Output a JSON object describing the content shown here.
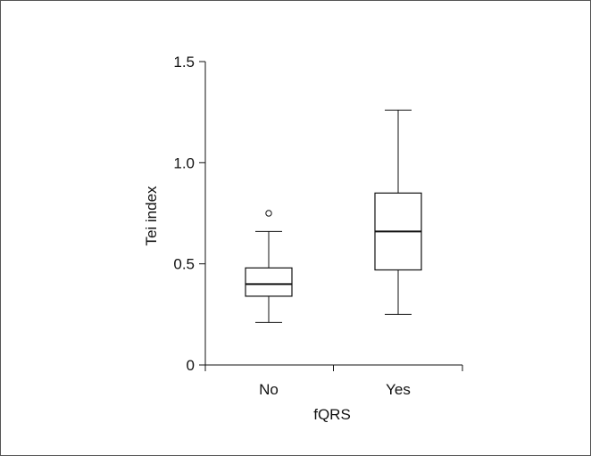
{
  "chart_data": {
    "type": "box",
    "xlabel": "fQRS",
    "ylabel": "Tei index",
    "categories": [
      "No",
      "Yes"
    ],
    "ylim": [
      0,
      1.5
    ],
    "yticks": [
      0,
      0.5,
      1.0,
      1.5
    ],
    "ytick_labels": [
      "0",
      "0.5",
      "1.0",
      "1.5"
    ],
    "boxes": [
      {
        "category": "No",
        "min": 0.21,
        "q1": 0.34,
        "median": 0.4,
        "q3": 0.48,
        "max": 0.66,
        "outliers": [
          0.75
        ]
      },
      {
        "category": "Yes",
        "min": 0.25,
        "q1": 0.47,
        "median": 0.66,
        "q3": 0.85,
        "max": 1.26,
        "outliers": []
      }
    ],
    "grid": false,
    "colors": {
      "stroke": "#111111",
      "fill": "#ffffff",
      "frame": "#555555"
    }
  }
}
